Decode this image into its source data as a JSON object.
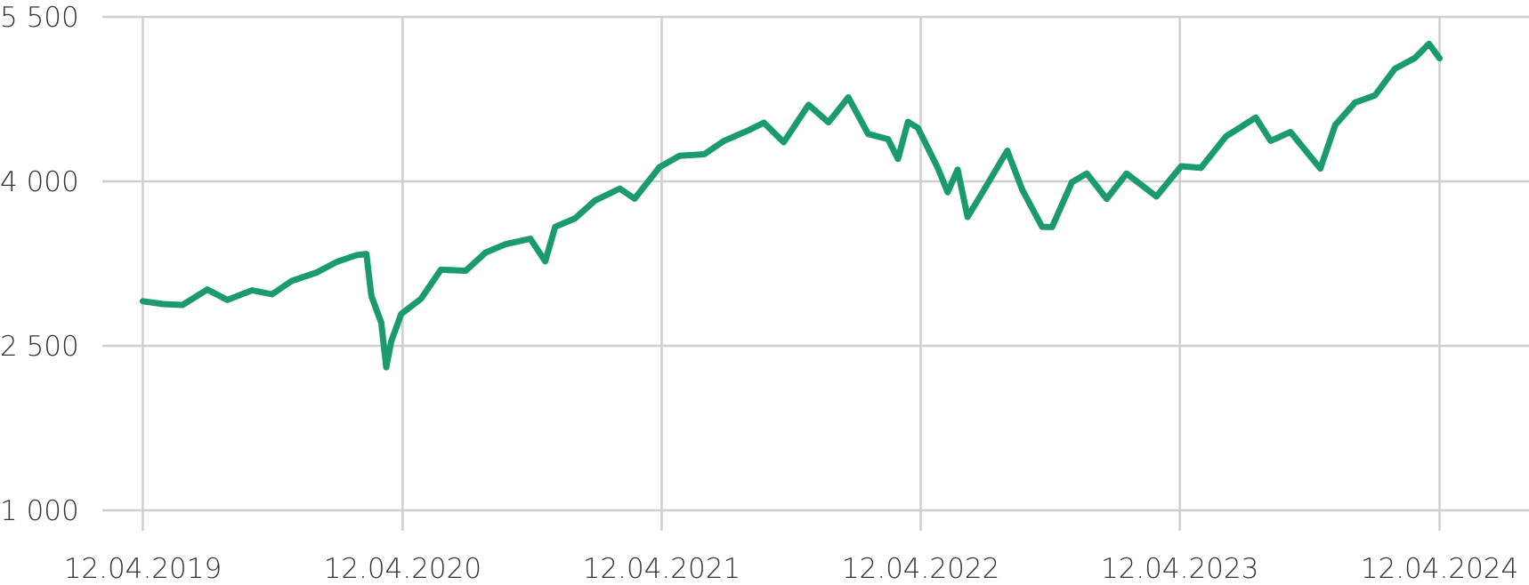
{
  "chart_data": {
    "type": "line",
    "x": [
      "2019-04-12",
      "2019-05-10",
      "2019-06-07",
      "2019-07-12",
      "2019-08-09",
      "2019-09-13",
      "2019-10-11",
      "2019-11-08",
      "2019-12-13",
      "2020-01-10",
      "2020-02-07",
      "2020-02-21",
      "2020-02-28",
      "2020-03-13",
      "2020-03-20",
      "2020-03-27",
      "2020-04-10",
      "2020-05-08",
      "2020-06-05",
      "2020-07-10",
      "2020-08-07",
      "2020-09-04",
      "2020-10-09",
      "2020-10-30",
      "2020-11-13",
      "2020-12-11",
      "2021-01-08",
      "2021-02-12",
      "2021-03-05",
      "2021-04-09",
      "2021-05-07",
      "2021-06-11",
      "2021-07-09",
      "2021-08-13",
      "2021-09-03",
      "2021-10-01",
      "2021-11-05",
      "2021-12-03",
      "2021-12-31",
      "2022-01-28",
      "2022-02-25",
      "2022-03-11",
      "2022-03-25",
      "2022-04-08",
      "2022-05-06",
      "2022-05-20",
      "2022-06-03",
      "2022-06-17",
      "2022-07-08",
      "2022-08-12",
      "2022-09-02",
      "2022-09-30",
      "2022-10-14",
      "2022-11-11",
      "2022-12-02",
      "2022-12-30",
      "2023-01-27",
      "2023-03-10",
      "2023-04-14",
      "2023-05-12",
      "2023-06-16",
      "2023-07-28",
      "2023-08-18",
      "2023-09-15",
      "2023-10-27",
      "2023-11-17",
      "2023-12-15",
      "2024-01-12",
      "2024-02-09",
      "2024-03-08",
      "2024-03-28",
      "2024-04-12"
    ],
    "series": [
      {
        "color": "#1a9b6b",
        "values": [
          2907,
          2881,
          2873,
          3014,
          2918,
          3007,
          2970,
          3093,
          3169,
          3265,
          3327,
          3338,
          2954,
          2711,
          2305,
          2541,
          2790,
          2930,
          3194,
          3185,
          3351,
          3427,
          3477,
          3270,
          3585,
          3663,
          3825,
          3934,
          3842,
          4129,
          4233,
          4247,
          4370,
          4468,
          4535,
          4357,
          4698,
          4538,
          4766,
          4432,
          4385,
          4204,
          4543,
          4488,
          4123,
          3901,
          4108,
          3675,
          3899,
          4280,
          3924,
          3586,
          3583,
          3993,
          4072,
          3840,
          4071,
          3862,
          4138,
          4124,
          4410,
          4582,
          4370,
          4450,
          4117,
          4514,
          4719,
          4784,
          5027,
          5124,
          5254,
          5123
        ]
      }
    ],
    "xlim": [
      "2019-02-14",
      "2024-08-16"
    ],
    "xticks": [
      {
        "value": "2019-04-12",
        "label": "12.04.2019"
      },
      {
        "value": "2020-04-12",
        "label": "12.04.2020"
      },
      {
        "value": "2021-04-12",
        "label": "12.04.2021"
      },
      {
        "value": "2022-04-12",
        "label": "12.04.2022"
      },
      {
        "value": "2023-04-12",
        "label": "12.04.2023"
      },
      {
        "value": "2024-04-12",
        "label": "12.04.2024"
      }
    ],
    "ylim": [
      1000,
      5500
    ],
    "yticks": [
      {
        "value": 1000,
        "label": "1 000"
      },
      {
        "value": 2500,
        "label": "2 500"
      },
      {
        "value": 4000,
        "label": "4 000"
      },
      {
        "value": 5500,
        "label": "5 500"
      }
    ],
    "grid": true
  }
}
